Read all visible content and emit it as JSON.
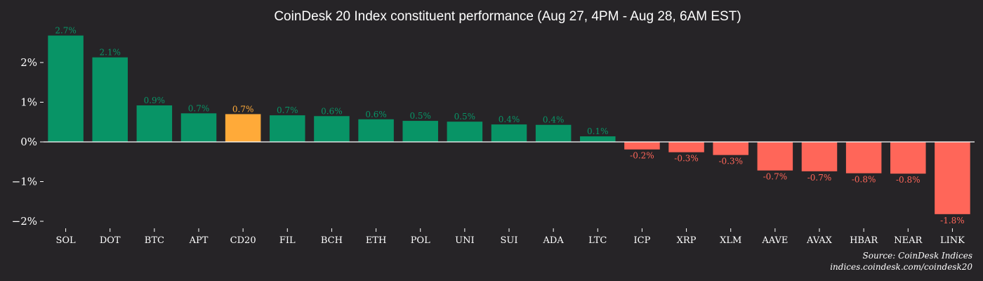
{
  "chart_data": {
    "type": "bar",
    "title": "CoinDesk 20 Index constituent performance (Aug 27, 4PM - Aug 28, 6AM EST)",
    "xlabel": "",
    "ylabel": "",
    "categories": [
      "SOL",
      "DOT",
      "BTC",
      "APT",
      "CD20",
      "FIL",
      "BCH",
      "ETH",
      "POL",
      "UNI",
      "SUI",
      "ADA",
      "LTC",
      "ICP",
      "XRP",
      "XLM",
      "AAVE",
      "AVAX",
      "HBAR",
      "NEAR",
      "LINK"
    ],
    "values": [
      2.68,
      2.13,
      0.92,
      0.72,
      0.7,
      0.67,
      0.65,
      0.57,
      0.53,
      0.51,
      0.44,
      0.43,
      0.14,
      -0.19,
      -0.26,
      -0.33,
      -0.72,
      -0.74,
      -0.79,
      -0.8,
      -1.82
    ],
    "data_labels": [
      "2.7%",
      "2.1%",
      "0.9%",
      "0.7%",
      "0.7%",
      "0.7%",
      "0.6%",
      "0.6%",
      "0.5%",
      "0.5%",
      "0.4%",
      "0.4%",
      "0.1%",
      "-0.2%",
      "-0.3%",
      "-0.3%",
      "-0.7%",
      "-0.7%",
      "-0.8%",
      "-0.8%",
      "-1.8%"
    ],
    "highlight": "CD20",
    "ylim": [
      -2.1,
      2.9
    ],
    "yticks": [
      2,
      1,
      0,
      -1,
      -2
    ],
    "ytick_labels": [
      "2%",
      "1%",
      "0%",
      "−1%",
      "−2%"
    ],
    "grid": false,
    "legend": "none",
    "colors": {
      "background": "#262427",
      "positive": "#089466",
      "negative": "#ff6659",
      "highlight": "#ffaa39",
      "text": "#ffffff",
      "zero_line": "#ffffff"
    },
    "source_lines": [
      "Source: CoinDesk Indices",
      "indices.coindesk.com/coindesk20"
    ]
  }
}
